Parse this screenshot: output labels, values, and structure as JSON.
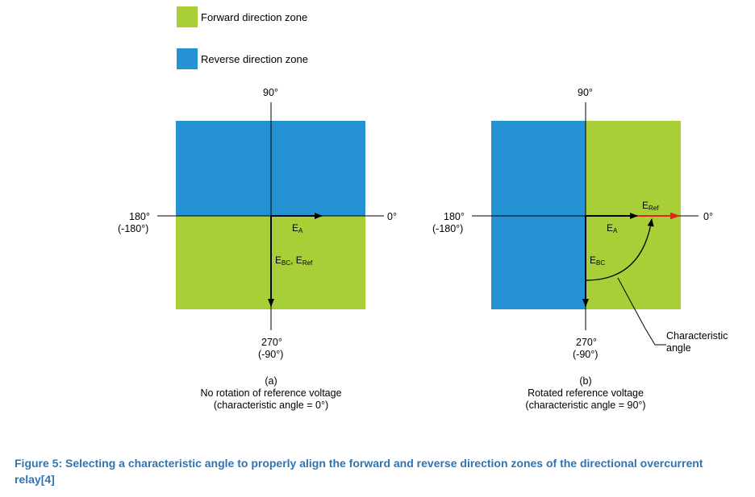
{
  "colors": {
    "forward": "#A8CF38",
    "reverse": "#2492D3",
    "ref_arrow": "#E8231E",
    "caption": "#2E74B5"
  },
  "legend": {
    "forward_label": "Forward direction zone",
    "reverse_label": "Reverse direction zone"
  },
  "diagram_a": {
    "top_label": "90°",
    "left_label_line1": "180°",
    "left_label_line2": "(-180°)",
    "right_label": "0°",
    "bottom_label_line1": "270°",
    "bottom_label_line2": "(-90°)",
    "ea_main": "E",
    "ea_sub": "A",
    "ebc_main": "E",
    "ebc_sub": "BC",
    "sep": ", E",
    "ref_sub": "Ref",
    "caption_line1": "(a)",
    "caption_line2": "No rotation of reference voltage",
    "caption_line3": "(characteristic angle = 0°)"
  },
  "diagram_b": {
    "top_label": "90°",
    "left_label_line1": "180°",
    "left_label_line2": "(-180°)",
    "right_label": "0°",
    "bottom_label_line1": "270°",
    "bottom_label_line2": "(-90°)",
    "ea_main": "E",
    "ea_sub": "A",
    "ebc_main": "E",
    "ebc_sub": "BC",
    "eref_main": "E",
    "eref_sub": "Ref",
    "char_angle_line1": "Characteristic",
    "char_angle_line2": "angle",
    "caption_line1": "(b)",
    "caption_line2": "Rotated reference voltage",
    "caption_line3": "(characteristic angle = 90°)"
  },
  "figure_caption": "Figure 5: Selecting a characteristic angle to properly align the forward and reverse direction zones of the directional overcurrent relay[4]"
}
